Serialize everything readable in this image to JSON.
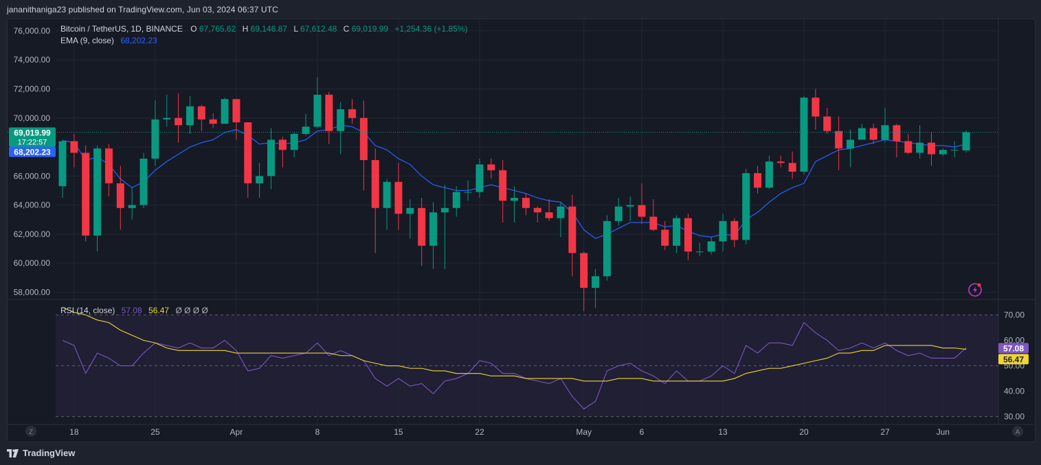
{
  "caption": "jananithaniga23 published on TradingView.com, Jun 03, 2024 06:37 UTC",
  "brand": {
    "name": "TradingView"
  },
  "legend": {
    "symbol": "Bitcoin / TetherUS, 1D, BINANCE",
    "o_label": "O",
    "o_value": "67,765.62",
    "h_label": "H",
    "h_value": "69,146.87",
    "l_label": "L",
    "l_value": "67,612.48",
    "c_label": "C",
    "c_value": "69,019.99",
    "change": "+1,254.36 (+1.85%)",
    "ema_label": "EMA (9, close)",
    "ema_value": "68,202.23",
    "rsi_label": "RSI (14, close)",
    "rsi_value": "57.08",
    "rsi_ma_value": "56.47",
    "rsi_extras": "Ø Ø Ø Ø"
  },
  "price_badges": {
    "last_price": "69,019.99",
    "countdown": "17:22:57",
    "ema": "68,202.23"
  },
  "rsi_badges": {
    "rsi": "57.08",
    "rsi_ma": "56.47"
  },
  "scale_buttons": {
    "left": "Z",
    "right": "A"
  },
  "colors": {
    "up": "#089981",
    "down": "#f23645",
    "ema": "#2962ff",
    "rsi": "#7e57c2",
    "rsi_ma": "#f0d536",
    "background": "#161a25",
    "grid": "#232733",
    "text": "#b2b5be"
  },
  "chart_data": [
    {
      "type": "candlestick",
      "title": "Bitcoin / TetherUS, 1D, BINANCE",
      "ylim": [
        57500,
        76800
      ],
      "yticks": [
        "76,000.00",
        "74,000.00",
        "72,000.00",
        "70,000.00",
        "68,000.00",
        "66,000.00",
        "64,000.00",
        "62,000.00",
        "60,000.00",
        "58,000.00"
      ],
      "ytick_values": [
        76000,
        74000,
        72000,
        70000,
        68000,
        66000,
        64000,
        62000,
        60000,
        58000
      ],
      "xtick_labels": [
        {
          "label": "18",
          "index": 1
        },
        {
          "label": "25",
          "index": 8
        },
        {
          "label": "Apr",
          "index": 15
        },
        {
          "label": "8",
          "index": 22
        },
        {
          "label": "15",
          "index": 29
        },
        {
          "label": "22",
          "index": 36
        },
        {
          "label": "May",
          "index": 45
        },
        {
          "label": "6",
          "index": 50
        },
        {
          "label": "13",
          "index": 57
        },
        {
          "label": "20",
          "index": 64
        },
        {
          "label": "27",
          "index": 71
        },
        {
          "label": "Jun",
          "index": 76
        }
      ],
      "grid": true,
      "candles": [
        {
          "date": "2024-03-17",
          "o": 65300,
          "h": 68500,
          "l": 64500,
          "c": 68400
        },
        {
          "date": "2024-03-18",
          "o": 68400,
          "h": 68900,
          "l": 66600,
          "c": 67600
        },
        {
          "date": "2024-03-19",
          "o": 67600,
          "h": 68100,
          "l": 61500,
          "c": 61900
        },
        {
          "date": "2024-03-20",
          "o": 61900,
          "h": 68100,
          "l": 60800,
          "c": 67900
        },
        {
          "date": "2024-03-21",
          "o": 67900,
          "h": 68200,
          "l": 64600,
          "c": 65500
        },
        {
          "date": "2024-03-22",
          "o": 65500,
          "h": 66700,
          "l": 62300,
          "c": 63800
        },
        {
          "date": "2024-03-23",
          "o": 63800,
          "h": 65200,
          "l": 63000,
          "c": 64000
        },
        {
          "date": "2024-03-24",
          "o": 64000,
          "h": 67600,
          "l": 63800,
          "c": 67200
        },
        {
          "date": "2024-03-25",
          "o": 67200,
          "h": 71200,
          "l": 66700,
          "c": 69900
        },
        {
          "date": "2024-03-26",
          "o": 69900,
          "h": 71600,
          "l": 69400,
          "c": 70000
        },
        {
          "date": "2024-03-27",
          "o": 70000,
          "h": 71700,
          "l": 68300,
          "c": 69500
        },
        {
          "date": "2024-03-28",
          "o": 69500,
          "h": 71500,
          "l": 68900,
          "c": 70800
        },
        {
          "date": "2024-03-29",
          "o": 70800,
          "h": 70900,
          "l": 69100,
          "c": 69900
        },
        {
          "date": "2024-03-30",
          "o": 69900,
          "h": 70300,
          "l": 69300,
          "c": 69600
        },
        {
          "date": "2024-03-31",
          "o": 69600,
          "h": 71400,
          "l": 69600,
          "c": 71300
        },
        {
          "date": "2024-04-01",
          "o": 71300,
          "h": 71300,
          "l": 68500,
          "c": 69700
        },
        {
          "date": "2024-04-02",
          "o": 69700,
          "h": 69700,
          "l": 64500,
          "c": 65500
        },
        {
          "date": "2024-04-03",
          "o": 65500,
          "h": 66900,
          "l": 64500,
          "c": 66000
        },
        {
          "date": "2024-04-04",
          "o": 66000,
          "h": 69300,
          "l": 65100,
          "c": 68500
        },
        {
          "date": "2024-04-05",
          "o": 68500,
          "h": 68700,
          "l": 66600,
          "c": 67800
        },
        {
          "date": "2024-04-06",
          "o": 67800,
          "h": 69000,
          "l": 67300,
          "c": 68900
        },
        {
          "date": "2024-04-07",
          "o": 68900,
          "h": 70300,
          "l": 68800,
          "c": 69400
        },
        {
          "date": "2024-04-08",
          "o": 69400,
          "h": 72800,
          "l": 69300,
          "c": 71600
        },
        {
          "date": "2024-04-09",
          "o": 71600,
          "h": 71800,
          "l": 68200,
          "c": 69100
        },
        {
          "date": "2024-04-10",
          "o": 69100,
          "h": 71100,
          "l": 67500,
          "c": 70600
        },
        {
          "date": "2024-04-11",
          "o": 70600,
          "h": 71300,
          "l": 69600,
          "c": 70000
        },
        {
          "date": "2024-04-12",
          "o": 70000,
          "h": 71200,
          "l": 65000,
          "c": 67100
        },
        {
          "date": "2024-04-13",
          "o": 67100,
          "h": 67900,
          "l": 60700,
          "c": 63800
        },
        {
          "date": "2024-04-14",
          "o": 63800,
          "h": 65800,
          "l": 62300,
          "c": 65600
        },
        {
          "date": "2024-04-15",
          "o": 65600,
          "h": 66900,
          "l": 62300,
          "c": 63400
        },
        {
          "date": "2024-04-16",
          "o": 63400,
          "h": 64400,
          "l": 61700,
          "c": 63800
        },
        {
          "date": "2024-04-17",
          "o": 63800,
          "h": 64500,
          "l": 59800,
          "c": 61200
        },
        {
          "date": "2024-04-18",
          "o": 61200,
          "h": 64200,
          "l": 59600,
          "c": 63500
        },
        {
          "date": "2024-04-19",
          "o": 63500,
          "h": 65400,
          "l": 59600,
          "c": 63800
        },
        {
          "date": "2024-04-20",
          "o": 63800,
          "h": 65300,
          "l": 63200,
          "c": 64900
        },
        {
          "date": "2024-04-21",
          "o": 64900,
          "h": 65700,
          "l": 64300,
          "c": 64900
        },
        {
          "date": "2024-04-22",
          "o": 64900,
          "h": 67200,
          "l": 64500,
          "c": 66800
        },
        {
          "date": "2024-04-23",
          "o": 66800,
          "h": 67200,
          "l": 65800,
          "c": 66400
        },
        {
          "date": "2024-04-24",
          "o": 66400,
          "h": 67100,
          "l": 62800,
          "c": 64300
        },
        {
          "date": "2024-04-25",
          "o": 64300,
          "h": 65300,
          "l": 62800,
          "c": 64500
        },
        {
          "date": "2024-04-26",
          "o": 64500,
          "h": 64800,
          "l": 63300,
          "c": 63800
        },
        {
          "date": "2024-04-27",
          "o": 63800,
          "h": 63900,
          "l": 62800,
          "c": 63500
        },
        {
          "date": "2024-04-28",
          "o": 63500,
          "h": 64400,
          "l": 62900,
          "c": 63100
        },
        {
          "date": "2024-04-29",
          "o": 63100,
          "h": 64200,
          "l": 61800,
          "c": 63900
        },
        {
          "date": "2024-04-30",
          "o": 63900,
          "h": 64700,
          "l": 59100,
          "c": 60700
        },
        {
          "date": "2024-05-01",
          "o": 60700,
          "h": 60800,
          "l": 56700,
          "c": 58300
        },
        {
          "date": "2024-05-02",
          "o": 58300,
          "h": 59600,
          "l": 56900,
          "c": 59100
        },
        {
          "date": "2024-05-03",
          "o": 59100,
          "h": 63300,
          "l": 58800,
          "c": 62900
        },
        {
          "date": "2024-05-04",
          "o": 62900,
          "h": 64500,
          "l": 62600,
          "c": 63900
        },
        {
          "date": "2024-05-05",
          "o": 63900,
          "h": 64600,
          "l": 62900,
          "c": 64000
        },
        {
          "date": "2024-05-06",
          "o": 64000,
          "h": 65500,
          "l": 62700,
          "c": 63200
        },
        {
          "date": "2024-05-07",
          "o": 63200,
          "h": 64400,
          "l": 62200,
          "c": 62300
        },
        {
          "date": "2024-05-08",
          "o": 62300,
          "h": 62900,
          "l": 60900,
          "c": 61200
        },
        {
          "date": "2024-05-09",
          "o": 61200,
          "h": 63300,
          "l": 60700,
          "c": 63100
        },
        {
          "date": "2024-05-10",
          "o": 63100,
          "h": 63400,
          "l": 60200,
          "c": 60800
        },
        {
          "date": "2024-05-11",
          "o": 60800,
          "h": 61400,
          "l": 60500,
          "c": 60800
        },
        {
          "date": "2024-05-12",
          "o": 60800,
          "h": 61800,
          "l": 60600,
          "c": 61500
        },
        {
          "date": "2024-05-13",
          "o": 61500,
          "h": 63400,
          "l": 60800,
          "c": 62900
        },
        {
          "date": "2024-05-14",
          "o": 62900,
          "h": 63100,
          "l": 61100,
          "c": 61600
        },
        {
          "date": "2024-05-15",
          "o": 61600,
          "h": 66500,
          "l": 61300,
          "c": 66200
        },
        {
          "date": "2024-05-16",
          "o": 66200,
          "h": 66700,
          "l": 64800,
          "c": 65200
        },
        {
          "date": "2024-05-17",
          "o": 65200,
          "h": 67400,
          "l": 65100,
          "c": 67000
        },
        {
          "date": "2024-05-18",
          "o": 67000,
          "h": 67400,
          "l": 66600,
          "c": 66900
        },
        {
          "date": "2024-05-19",
          "o": 66900,
          "h": 67700,
          "l": 65800,
          "c": 66300
        },
        {
          "date": "2024-05-20",
          "o": 66300,
          "h": 71500,
          "l": 66100,
          "c": 71400
        },
        {
          "date": "2024-05-21",
          "o": 71400,
          "h": 72000,
          "l": 69200,
          "c": 70100
        },
        {
          "date": "2024-05-22",
          "o": 70100,
          "h": 70700,
          "l": 68900,
          "c": 69100
        },
        {
          "date": "2024-05-23",
          "o": 69100,
          "h": 70100,
          "l": 66400,
          "c": 67900
        },
        {
          "date": "2024-05-24",
          "o": 67900,
          "h": 69200,
          "l": 66600,
          "c": 68500
        },
        {
          "date": "2024-05-25",
          "o": 68500,
          "h": 69600,
          "l": 68500,
          "c": 69300
        },
        {
          "date": "2024-05-26",
          "o": 69300,
          "h": 69600,
          "l": 68200,
          "c": 68500
        },
        {
          "date": "2024-05-27",
          "o": 68500,
          "h": 70700,
          "l": 68300,
          "c": 69500
        },
        {
          "date": "2024-05-28",
          "o": 69500,
          "h": 69600,
          "l": 67300,
          "c": 68400
        },
        {
          "date": "2024-05-29",
          "o": 68400,
          "h": 68900,
          "l": 67500,
          "c": 67600
        },
        {
          "date": "2024-05-30",
          "o": 67600,
          "h": 69500,
          "l": 67200,
          "c": 68300
        },
        {
          "date": "2024-05-31",
          "o": 68300,
          "h": 69000,
          "l": 66700,
          "c": 67500
        },
        {
          "date": "2024-06-01",
          "o": 67500,
          "h": 67900,
          "l": 67400,
          "c": 67800
        },
        {
          "date": "2024-06-02",
          "o": 67800,
          "h": 68400,
          "l": 67300,
          "c": 67800
        },
        {
          "date": "2024-06-03",
          "o": 67765.62,
          "h": 69146.87,
          "l": 67612.48,
          "c": 69019.99
        }
      ],
      "ema": [
        68450,
        68300,
        67100,
        67300,
        66800,
        65800,
        65200,
        65600,
        66400,
        67000,
        67500,
        68000,
        68300,
        68500,
        69000,
        69200,
        68800,
        68200,
        68300,
        68200,
        68300,
        68500,
        69100,
        69200,
        69500,
        69400,
        69000,
        68100,
        67800,
        67200,
        66800,
        66000,
        65400,
        65200,
        65000,
        65000,
        65200,
        65400,
        65200,
        65000,
        64800,
        64500,
        64300,
        64200,
        63500,
        62300,
        61700,
        62000,
        62400,
        62800,
        62800,
        62800,
        62500,
        62600,
        62200,
        61900,
        61800,
        62000,
        61900,
        63000,
        63500,
        64200,
        64800,
        65200,
        65500,
        67000,
        67400,
        67800,
        67900,
        68100,
        68300,
        68500,
        68400,
        68300,
        68200,
        68100,
        68100,
        68000,
        68202.23
      ]
    },
    {
      "type": "line",
      "title": "RSI (14, close)",
      "ylim": [
        28,
        75
      ],
      "yticks": [
        "70.00",
        "60.00",
        "50.00",
        "40.00",
        "30.00"
      ],
      "ytick_values": [
        70,
        60,
        50,
        40,
        30
      ],
      "bands": [
        30,
        50,
        70
      ],
      "series": [
        {
          "name": "RSI",
          "color": "#7e57c2",
          "values": [
            60,
            58,
            47,
            55,
            53,
            50,
            50,
            55,
            59,
            58,
            57,
            59,
            57,
            57,
            60,
            56,
            48,
            49,
            54,
            53,
            54,
            55,
            59,
            54,
            56,
            54,
            52,
            45,
            42,
            45,
            42,
            43,
            39,
            44,
            45,
            47,
            52,
            51,
            47,
            47,
            45,
            44,
            43,
            45,
            38,
            33,
            36,
            48,
            50,
            51,
            48,
            46,
            43,
            48,
            44,
            44,
            46,
            50,
            47,
            58,
            55,
            59,
            59,
            58,
            67,
            63,
            60,
            56,
            57,
            59,
            57,
            59,
            56,
            54,
            55,
            53,
            53,
            53,
            57.08
          ]
        },
        {
          "name": "RSI-based MA",
          "color": "#f0d536",
          "values": [
            73,
            71,
            70,
            68,
            67,
            64,
            62,
            60,
            59,
            57,
            56,
            56,
            56,
            56,
            56,
            55,
            55,
            55,
            55,
            55,
            55,
            55,
            55,
            55,
            54,
            54,
            52,
            51,
            50,
            50,
            49,
            49,
            48,
            48,
            47,
            47,
            47,
            46,
            46,
            46,
            45,
            45,
            45,
            45,
            45,
            44,
            44,
            44,
            45,
            45,
            45,
            44,
            44,
            44,
            44,
            44,
            44,
            44,
            45,
            47,
            48,
            49,
            49,
            50,
            51,
            52,
            53,
            55,
            55,
            56,
            56,
            58,
            58,
            58,
            58,
            58,
            57,
            57,
            56.47
          ]
        }
      ]
    }
  ]
}
